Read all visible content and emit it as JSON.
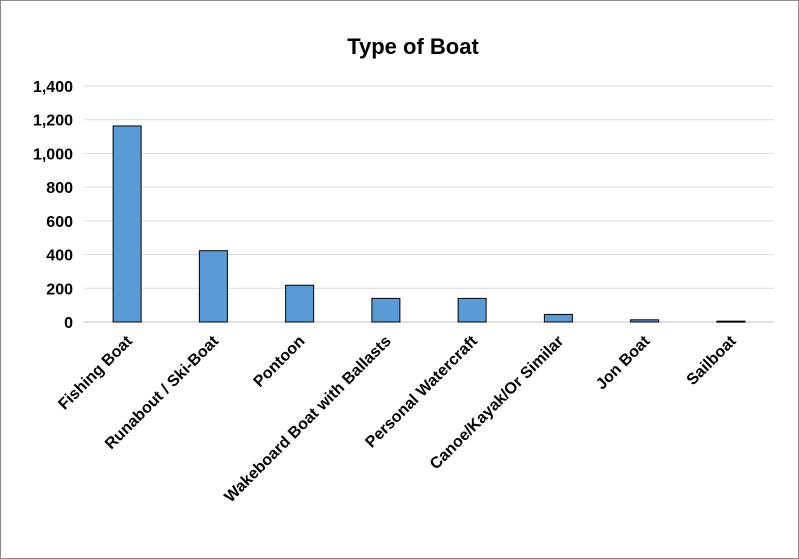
{
  "chart_data": {
    "type": "bar",
    "title": "Type of Boat",
    "xlabel": "",
    "ylabel": "",
    "categories": [
      "Fishing Boat",
      "Runabout / Ski-Boat",
      "Pontoon",
      "Wakeboard Boat with Ballasts",
      "Personal Watercraft",
      "Canoe/Kayak/Or Similar",
      "Jon Boat",
      "Sailboat"
    ],
    "values": [
      1163,
      423,
      218,
      140,
      140,
      45,
      13,
      5
    ],
    "ylim": [
      0,
      1400
    ],
    "yticks": [
      0,
      200,
      400,
      600,
      800,
      1000,
      1200,
      1400
    ],
    "ytick_labels": [
      "0",
      "200",
      "400",
      "600",
      "800",
      "1,000",
      "1,200",
      "1,400"
    ],
    "grid": true,
    "legend": "none",
    "bar_color": "#5b9bd5",
    "bar_edge_color": "#000000",
    "grid_color": "#d9d9d9"
  }
}
